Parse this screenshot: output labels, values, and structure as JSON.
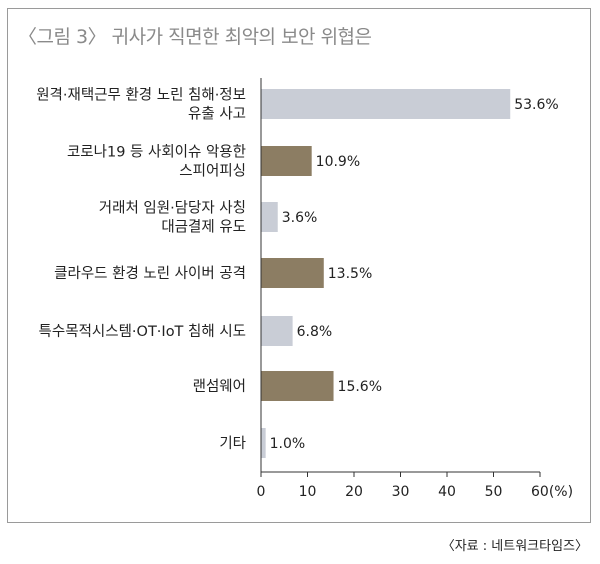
{
  "title": "〈그림 3〉 귀사가 직면한 최악의 보안 위협은",
  "source": "〈자료 : 네트워크타임즈〉",
  "colors": {
    "gray_bar": "#c9cdd6",
    "olive_bar": "#8c7d63",
    "axis": "#333333"
  },
  "chart_data": {
    "type": "bar",
    "orientation": "horizontal",
    "categories": [
      [
        "원격·재택근무 환경 노린 침해·정보",
        "유출 사고"
      ],
      [
        "코로나19 등 사회이슈 악용한",
        "스피어피싱"
      ],
      [
        "거래처 임원·담당자 사칭",
        "대금결제 유도"
      ],
      [
        "클라우드 환경 노린 사이버 공격"
      ],
      [
        "특수목적시스템·OT·IoT 침해 시도"
      ],
      [
        "랜섬웨어"
      ],
      [
        "기타"
      ]
    ],
    "values": [
      53.6,
      10.9,
      3.6,
      13.5,
      6.8,
      15.6,
      1.0
    ],
    "value_labels": [
      "53.6%",
      "10.9%",
      "3.6%",
      "13.5%",
      "6.8%",
      "15.6%",
      "1.0%"
    ],
    "bar_colors": [
      "#c9cdd6",
      "#8c7d63",
      "#c9cdd6",
      "#8c7d63",
      "#c9cdd6",
      "#8c7d63",
      "#c9cdd6"
    ],
    "xlim": [
      0,
      60
    ],
    "xticks": [
      0,
      10,
      20,
      30,
      40,
      50,
      60
    ],
    "xtick_labels": [
      "0",
      "10",
      "20",
      "30",
      "40",
      "50",
      "60(%)"
    ],
    "xlabel": "",
    "ylabel": "",
    "grid": false,
    "legend": "none"
  }
}
